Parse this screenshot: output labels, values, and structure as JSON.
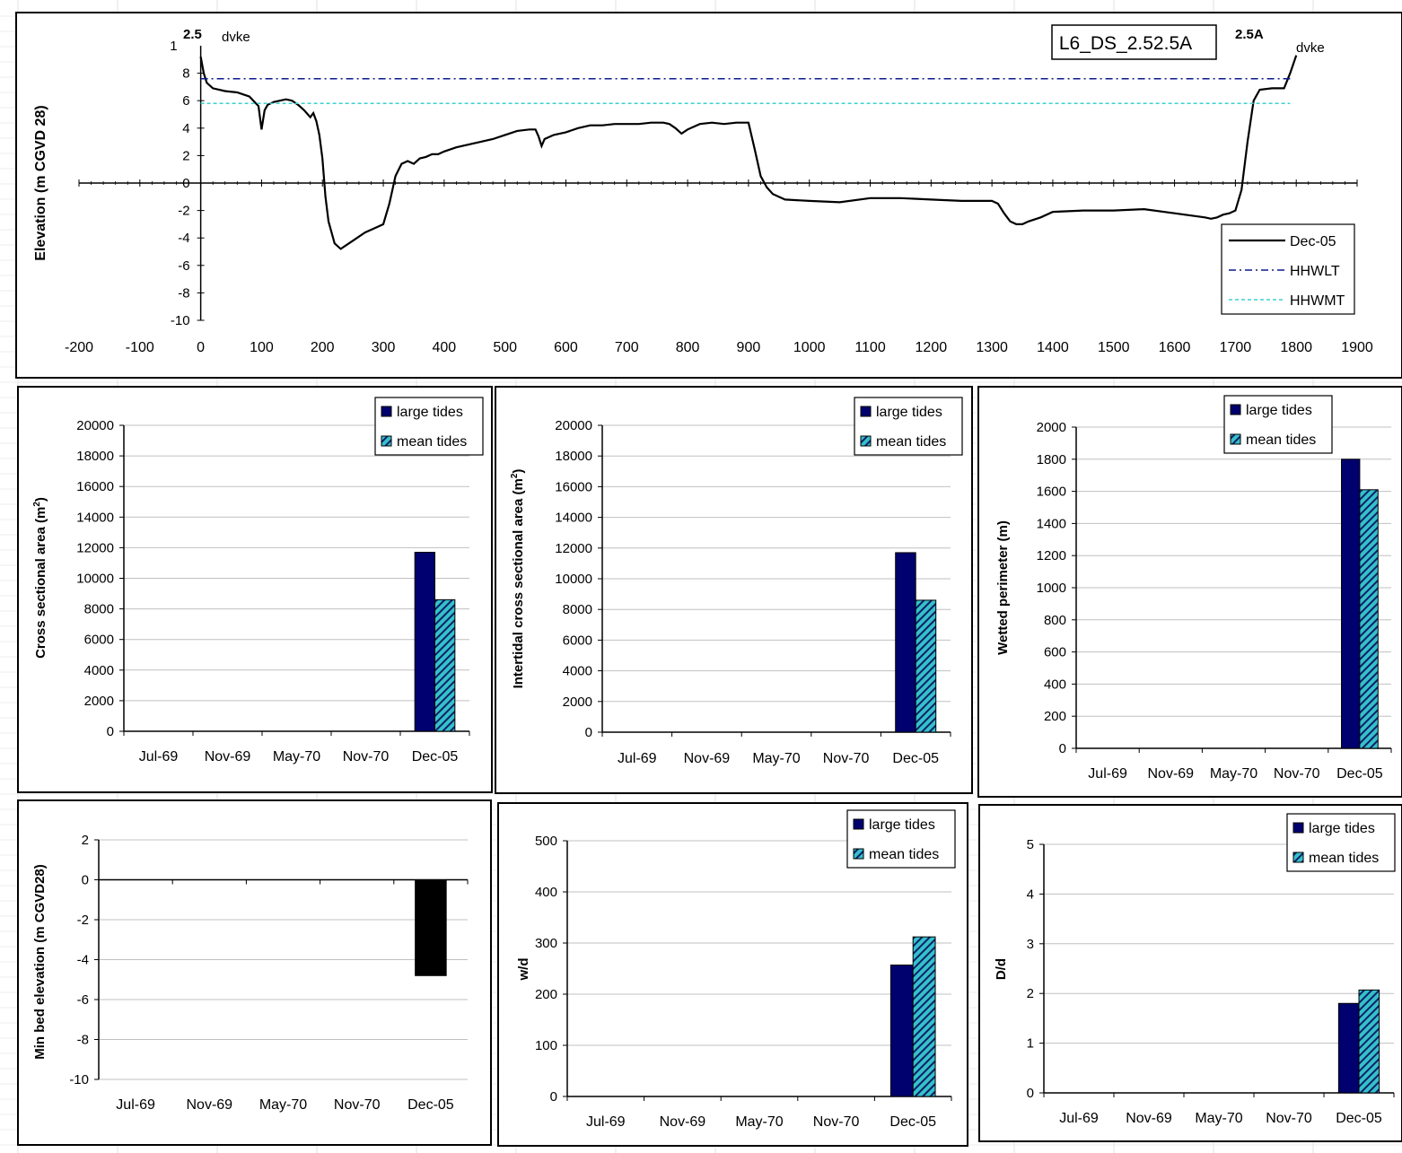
{
  "colors": {
    "large_tides": "#00006e",
    "mean_tides_fill": "#36c0c8",
    "mean_tides_stripe": "#0a1f6a",
    "profile": "#000000",
    "hhwlt": "#0b1a8c",
    "hhwmt": "#3fd0d0",
    "grid": "#c0c0c0",
    "min_bed": "#000000"
  },
  "chart_data": [
    {
      "id": "profile",
      "type": "line",
      "title": "L6_DS_2.52.5A",
      "ylabel": "Elevation (m CGVD 28)",
      "xlabel": "",
      "xlim": [
        -200,
        1900
      ],
      "ylim": [
        -10,
        10
      ],
      "xticks": [
        "-200",
        "-100",
        "0",
        "100",
        "200",
        "300",
        "400",
        "500",
        "600",
        "700",
        "800",
        "900",
        "1000",
        "1100",
        "1200",
        "1300",
        "1400",
        "1500",
        "1600",
        "1700",
        "1800",
        "1900"
      ],
      "yticks": [
        "8",
        "6",
        "4",
        "2",
        "0",
        "-2",
        "-4",
        "-6",
        "-8",
        "-10"
      ],
      "yaxis_top_label": "1",
      "annotations": {
        "left_station": "2.5",
        "left_dyke": "dvke",
        "right_station": "2.5A",
        "right_dyke": "dvke"
      },
      "series": [
        {
          "name": "Dec-05",
          "style": "solid",
          "x": [
            0,
            5,
            10,
            20,
            40,
            60,
            80,
            95,
            100,
            105,
            110,
            120,
            130,
            140,
            150,
            160,
            170,
            180,
            185,
            190,
            195,
            200,
            205,
            210,
            220,
            230,
            250,
            270,
            290,
            300,
            310,
            320,
            330,
            340,
            350,
            360,
            370,
            380,
            390,
            400,
            420,
            450,
            480,
            500,
            520,
            540,
            550,
            555,
            560,
            565,
            580,
            600,
            620,
            640,
            660,
            680,
            700,
            720,
            740,
            760,
            770,
            780,
            790,
            800,
            820,
            840,
            860,
            880,
            900,
            910,
            920,
            930,
            940,
            960,
            1000,
            1050,
            1100,
            1150,
            1200,
            1250,
            1300,
            1310,
            1320,
            1330,
            1340,
            1350,
            1360,
            1380,
            1400,
            1450,
            1500,
            1550,
            1600,
            1650,
            1660,
            1670,
            1680,
            1690,
            1700,
            1710,
            1720,
            1730,
            1740,
            1760,
            1780,
            1790,
            1800
          ],
          "y": [
            9.2,
            8,
            7.3,
            6.9,
            6.7,
            6.6,
            6.3,
            5.6,
            3.9,
            5.3,
            5.7,
            5.9,
            6.0,
            6.1,
            6.0,
            5.7,
            5.3,
            4.8,
            5.1,
            4.5,
            3.5,
            1.8,
            -1,
            -2.8,
            -4.4,
            -4.8,
            -4.2,
            -3.6,
            -3.2,
            -3.0,
            -1.5,
            0.5,
            1.4,
            1.6,
            1.4,
            1.8,
            1.9,
            2.1,
            2.1,
            2.3,
            2.6,
            2.9,
            3.2,
            3.5,
            3.8,
            3.9,
            3.9,
            3.4,
            2.7,
            3.2,
            3.5,
            3.7,
            4.0,
            4.2,
            4.2,
            4.3,
            4.3,
            4.3,
            4.4,
            4.4,
            4.3,
            4.0,
            3.6,
            3.9,
            4.3,
            4.4,
            4.3,
            4.4,
            4.4,
            2.5,
            0.5,
            -0.3,
            -0.8,
            -1.2,
            -1.3,
            -1.4,
            -1.1,
            -1.1,
            -1.2,
            -1.3,
            -1.3,
            -1.5,
            -2.2,
            -2.8,
            -3.0,
            -3.0,
            -2.8,
            -2.5,
            -2.1,
            -2.0,
            -2.0,
            -1.9,
            -2.2,
            -2.5,
            -2.6,
            -2.5,
            -2.3,
            -2.2,
            -2.0,
            -0.5,
            3.0,
            6.0,
            6.8,
            6.9,
            6.9,
            8.0,
            9.3
          ]
        },
        {
          "name": "HHWLT",
          "style": "dashdot",
          "x": [
            0,
            1790
          ],
          "y": [
            7.6,
            7.6
          ]
        },
        {
          "name": "HHWMT",
          "style": "dashed",
          "x": [
            0,
            1790
          ],
          "y": [
            5.8,
            5.8
          ]
        }
      ],
      "legend": {
        "placement": "bottom-right",
        "entries": [
          "Dec-05",
          "HHWLT",
          "HHWMT"
        ]
      },
      "grid": false
    },
    {
      "id": "xsec_area",
      "type": "bar",
      "categories": [
        "Jul-69",
        "Nov-69",
        "May-70",
        "Nov-70",
        "Dec-05"
      ],
      "series": [
        {
          "name": "large tides",
          "values": [
            null,
            null,
            null,
            null,
            11700
          ]
        },
        {
          "name": "mean tides",
          "values": [
            null,
            null,
            null,
            null,
            8600
          ]
        }
      ],
      "ylabel_parts": [
        "Cross sectional area (m",
        "2",
        ")"
      ],
      "ylim": [
        0,
        20000
      ],
      "yticks": [
        "0",
        "2000",
        "4000",
        "6000",
        "8000",
        "10000",
        "12000",
        "14000",
        "16000",
        "18000",
        "20000"
      ],
      "legend": {
        "placement": "top-right",
        "entries": [
          "large tides",
          "mean tides"
        ]
      },
      "grid": true
    },
    {
      "id": "intertidal_area",
      "type": "bar",
      "categories": [
        "Jul-69",
        "Nov-69",
        "May-70",
        "Nov-70",
        "Dec-05"
      ],
      "series": [
        {
          "name": "large tides",
          "values": [
            null,
            null,
            null,
            null,
            11700
          ]
        },
        {
          "name": "mean tides",
          "values": [
            null,
            null,
            null,
            null,
            8600
          ]
        }
      ],
      "ylabel_parts": [
        "Intertidal cross sectional area (m",
        "2",
        ")"
      ],
      "ylim": [
        0,
        20000
      ],
      "yticks": [
        "0",
        "2000",
        "4000",
        "6000",
        "8000",
        "10000",
        "12000",
        "14000",
        "16000",
        "18000",
        "20000"
      ],
      "legend": {
        "placement": "top-right",
        "entries": [
          "large tides",
          "mean tides"
        ]
      },
      "grid": true
    },
    {
      "id": "wetted_perimeter",
      "type": "bar",
      "categories": [
        "Jul-69",
        "Nov-69",
        "May-70",
        "Nov-70",
        "Dec-05"
      ],
      "series": [
        {
          "name": "large tides",
          "values": [
            null,
            null,
            null,
            null,
            1800
          ]
        },
        {
          "name": "mean tides",
          "values": [
            null,
            null,
            null,
            null,
            1610
          ]
        }
      ],
      "ylabel_parts": [
        "Wetted perimeter (m)",
        "",
        ""
      ],
      "ylim": [
        0,
        2000
      ],
      "yticks": [
        "0",
        "200",
        "400",
        "600",
        "800",
        "1000",
        "1200",
        "1400",
        "1600",
        "1800",
        "2000"
      ],
      "legend": {
        "placement": "top-right",
        "entries": [
          "large tides",
          "mean tides"
        ]
      },
      "grid": true
    },
    {
      "id": "min_bed",
      "type": "bar",
      "categories": [
        "Jul-69",
        "Nov-69",
        "May-70",
        "Nov-70",
        "Dec-05"
      ],
      "series": [
        {
          "values": [
            null,
            null,
            null,
            null,
            -4.8
          ]
        }
      ],
      "ylabel_parts": [
        "Min bed elevation (m CGVD28)",
        "",
        ""
      ],
      "ylim": [
        -10,
        2
      ],
      "yticks": [
        "2",
        "0",
        "-2",
        "-4",
        "-6",
        "-8",
        "-10"
      ],
      "legend": null,
      "grid": true
    },
    {
      "id": "w_over_d",
      "type": "bar",
      "categories": [
        "Jul-69",
        "Nov-69",
        "May-70",
        "Nov-70",
        "Dec-05"
      ],
      "series": [
        {
          "name": "large tides",
          "values": [
            null,
            null,
            null,
            null,
            257
          ]
        },
        {
          "name": "mean tides",
          "values": [
            null,
            null,
            null,
            null,
            312
          ]
        }
      ],
      "ylabel_parts": [
        "w/d",
        "",
        ""
      ],
      "ylim": [
        0,
        500
      ],
      "yticks": [
        "0",
        "100",
        "200",
        "300",
        "400",
        "500"
      ],
      "legend": {
        "placement": "top-right",
        "entries": [
          "large tides",
          "mean tides"
        ]
      },
      "grid": true
    },
    {
      "id": "D_over_d",
      "type": "bar",
      "categories": [
        "Jul-69",
        "Nov-69",
        "May-70",
        "Nov-70",
        "Dec-05"
      ],
      "series": [
        {
          "name": "large tides",
          "values": [
            null,
            null,
            null,
            null,
            1.8
          ]
        },
        {
          "name": "mean tides",
          "values": [
            null,
            null,
            null,
            null,
            2.07
          ]
        }
      ],
      "ylabel_parts": [
        "D/d",
        "",
        ""
      ],
      "ylim": [
        0,
        5
      ],
      "yticks": [
        "0",
        "1",
        "2",
        "3",
        "4",
        "5"
      ],
      "legend": {
        "placement": "top-right",
        "entries": [
          "large tides",
          "mean tides"
        ]
      },
      "grid": true
    }
  ]
}
